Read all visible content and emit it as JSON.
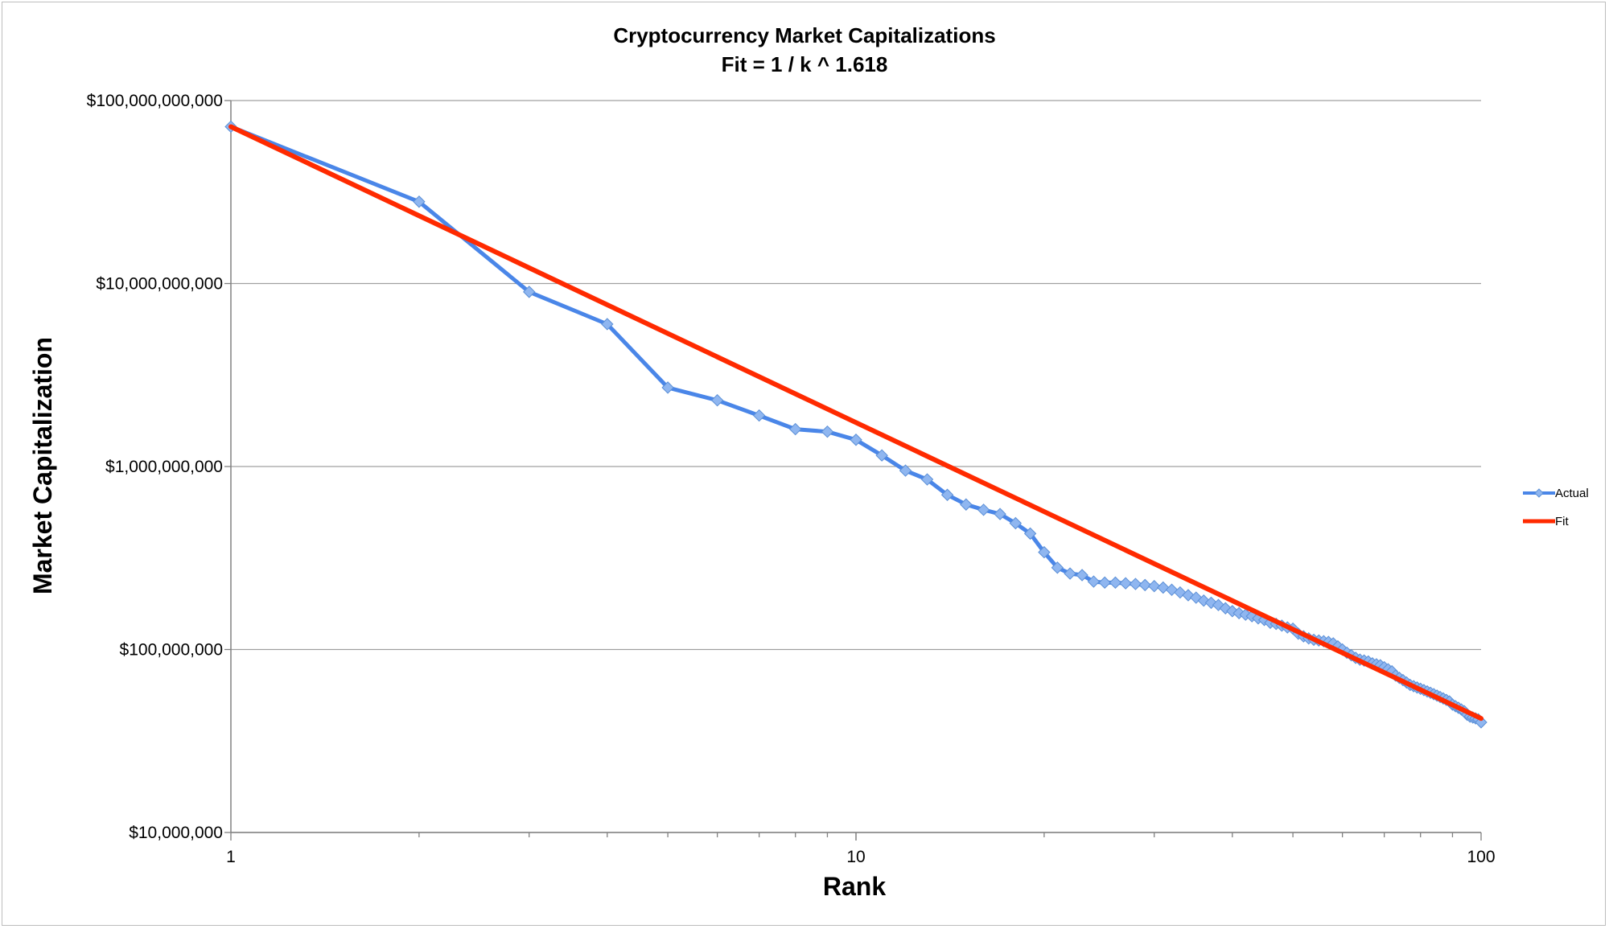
{
  "chart_data": {
    "type": "line",
    "title": "Cryptocurrency Market Capitalizations",
    "subtitle": "Fit = 1 / k ^ 1.618",
    "xlabel": "Rank",
    "ylabel": "Market Capitalization",
    "x_scale": "log",
    "y_scale": "log",
    "xlim": [
      1,
      100
    ],
    "ylim": [
      10000000,
      100000000000
    ],
    "x_ticks": [
      1,
      10,
      100
    ],
    "x_tick_labels": [
      "1",
      "10",
      "100"
    ],
    "y_ticks": [
      10000000,
      100000000,
      1000000000,
      10000000000,
      100000000000
    ],
    "y_tick_labels": [
      "$10,000,000",
      "$100,000,000",
      "$1,000,000,000",
      "$10,000,000,000",
      "$100,000,000,000"
    ],
    "grid": "horizontal",
    "legend_position": "right",
    "series": [
      {
        "name": "Actual",
        "color": "#4a86e8",
        "marker": "diamond",
        "x": [
          1,
          2,
          3,
          4,
          5,
          6,
          7,
          8,
          9,
          10,
          11,
          12,
          13,
          14,
          15,
          16,
          17,
          18,
          19,
          20,
          21,
          22,
          23,
          24,
          25,
          26,
          27,
          28,
          29,
          30,
          31,
          32,
          33,
          34,
          35,
          36,
          37,
          38,
          39,
          40,
          41,
          42,
          43,
          44,
          45,
          46,
          47,
          48,
          49,
          50,
          51,
          52,
          53,
          54,
          55,
          56,
          57,
          58,
          59,
          60,
          61,
          62,
          63,
          64,
          65,
          66,
          67,
          68,
          69,
          70,
          71,
          72,
          73,
          74,
          75,
          76,
          77,
          78,
          79,
          80,
          81,
          82,
          83,
          84,
          85,
          86,
          87,
          88,
          89,
          90,
          91,
          92,
          93,
          94,
          95,
          96,
          97,
          98,
          99,
          100
        ],
        "y": [
          72000000000,
          28000000000,
          9000000000,
          6000000000,
          2700000000,
          2300000000,
          1900000000,
          1600000000,
          1550000000,
          1400000000,
          1150000000,
          950000000,
          850000000,
          700000000,
          620000000,
          580000000,
          550000000,
          490000000,
          430000000,
          340000000,
          280000000,
          260000000,
          255000000,
          235000000,
          232000000,
          232000000,
          230000000,
          228000000,
          225000000,
          222000000,
          218000000,
          212000000,
          205000000,
          198000000,
          192000000,
          185000000,
          180000000,
          175000000,
          168000000,
          162000000,
          158000000,
          155000000,
          152000000,
          148000000,
          145000000,
          140000000,
          138000000,
          135000000,
          132000000,
          130000000,
          122000000,
          118000000,
          115000000,
          113000000,
          112000000,
          111000000,
          110000000,
          108000000,
          104000000,
          100000000,
          96000000,
          93000000,
          90000000,
          88000000,
          87000000,
          86000000,
          84000000,
          83000000,
          82000000,
          80000000,
          78000000,
          76000000,
          72000000,
          70000000,
          68000000,
          66000000,
          64000000,
          63000000,
          62000000,
          61000000,
          60000000,
          59000000,
          58000000,
          57000000,
          56000000,
          55000000,
          54000000,
          53000000,
          52000000,
          50000000,
          49000000,
          48000000,
          47000000,
          46000000,
          44000000,
          43000000,
          42500000,
          42000000,
          41500000,
          40000000
        ]
      },
      {
        "name": "Fit",
        "color": "#ff2a00",
        "marker": "none",
        "formula": "72000000000 / k^1.618",
        "x": [
          1,
          100
        ],
        "y": [
          72000000000,
          42000000
        ]
      }
    ]
  }
}
